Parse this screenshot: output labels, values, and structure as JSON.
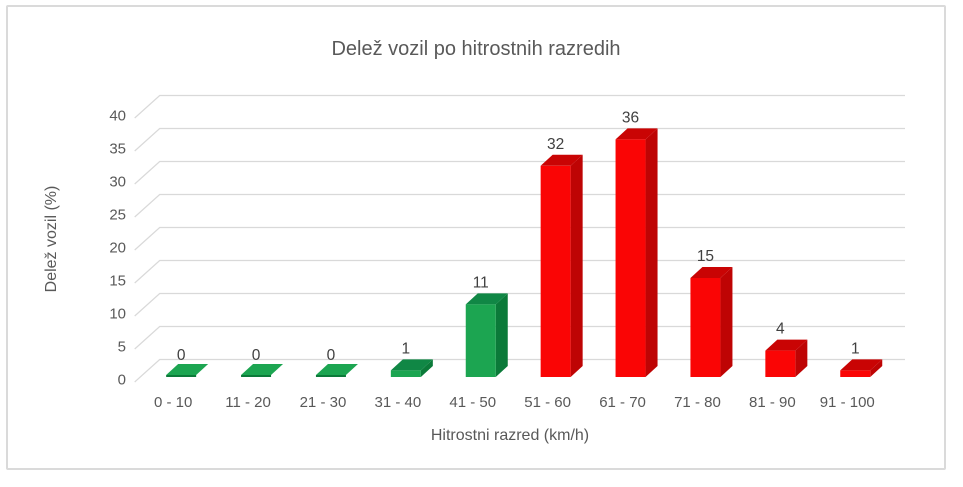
{
  "frame": {
    "background": "#ffffff",
    "border_color": "#dadada"
  },
  "chart_data": {
    "type": "bar",
    "style": "3d-column",
    "title": "Delež vozil po hitrostnih razredih",
    "xlabel": "Hitrostni razred (km/h)",
    "ylabel": "Delež vozil (%)",
    "categories": [
      "0 - 10",
      "11 - 20",
      "21 - 30",
      "31 - 40",
      "41 - 50",
      "51 - 60",
      "61 - 70",
      "71 - 80",
      "81 - 90",
      "91 - 100"
    ],
    "values": [
      0,
      0,
      0,
      1,
      11,
      32,
      36,
      15,
      4,
      1
    ],
    "data_labels": [
      "0",
      "0",
      "0",
      "1",
      "11",
      "32",
      "36",
      "15",
      "4",
      "1"
    ],
    "series_color_keys": [
      "green",
      "green",
      "green",
      "green",
      "green",
      "red",
      "red",
      "red",
      "red",
      "red"
    ],
    "ylim": [
      0,
      40
    ],
    "ytick_step": 5,
    "grid": true,
    "legend": "none",
    "colors": {
      "green": {
        "front": "#1CA551",
        "top": "#108745",
        "side": "#0B7A39"
      },
      "red": {
        "front": "#FA0505",
        "top": "#C90404",
        "side": "#BE0404"
      },
      "gridline": "#D9D9D9",
      "axis_text": "#595959",
      "data_label_text": "#404040",
      "title_text": "#595959"
    }
  }
}
